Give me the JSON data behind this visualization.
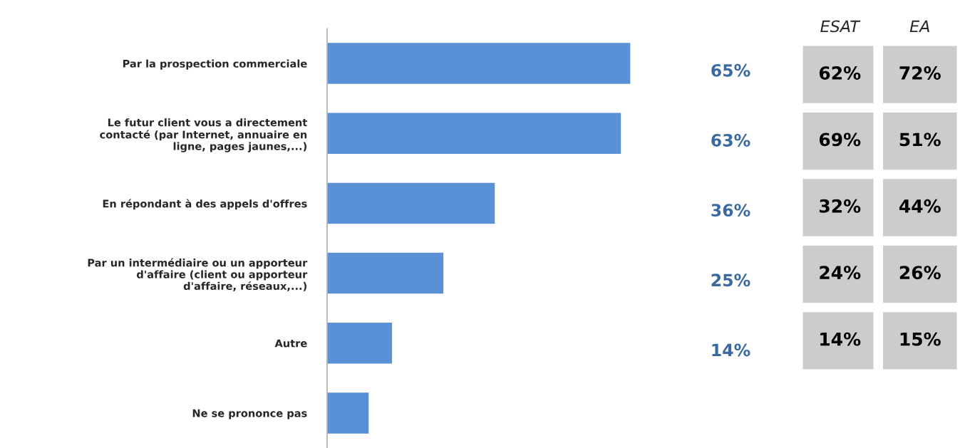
{
  "chart_data": [
    {
      "type": "bar",
      "orientation": "horizontal",
      "categories": [
        "Par la prospection commerciale",
        "Le futur client vous a directement contacté (par Internet, annuaire en ligne, pages jaunes,...)",
        "En répondant à des appels d'offres",
        "Par un intermédiaire ou un apporteur d'affaire (client ou apporteur d'affaire, réseaux,...)",
        "Autre",
        "Ne se prononce pas"
      ],
      "values": [
        65,
        63,
        36,
        25,
        14,
        9
      ],
      "value_labels": [
        "65%",
        "63%",
        "36%",
        "25%",
        "14%",
        null
      ],
      "color": "#5990d6"
    },
    {
      "type": "other",
      "categories": [
        "ESAT",
        "EA"
      ],
      "annotations": [
        "62%",
        "72%",
        "69%",
        "51%",
        "32%",
        "44%",
        "24%",
        "26%",
        "14%",
        "15%"
      ],
      "color": "#cccccc"
    }
  ]
}
